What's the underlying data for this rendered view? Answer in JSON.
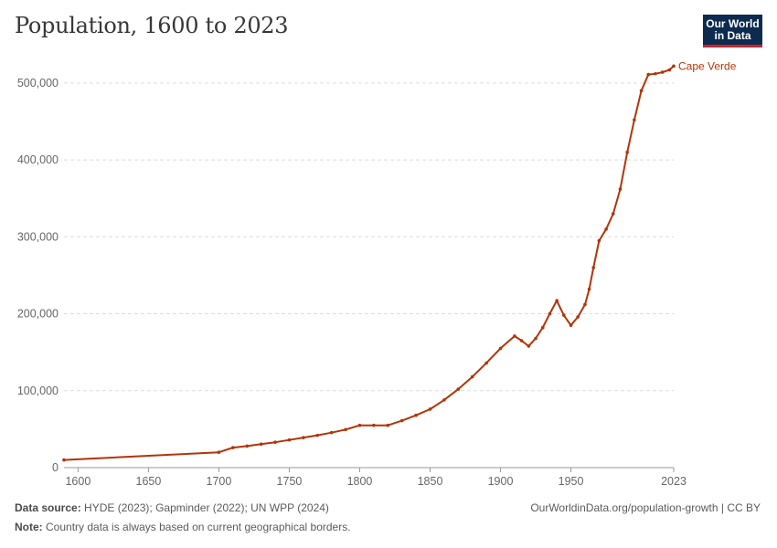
{
  "title": "Population, 1600 to 2023",
  "logo": {
    "line1": "Our World",
    "line2": "in Data"
  },
  "footer": {
    "source_label": "Data source:",
    "source_text": "HYDE (2023); Gapminder (2022); UN WPP (2024)",
    "url": "OurWorldinData.org/population-growth | CC BY",
    "note_label": "Note:",
    "note_text": "Country data is always based on current geographical borders."
  },
  "chart_data": {
    "type": "line",
    "title": "Population, 1600 to 2023",
    "xlabel": "",
    "ylabel": "",
    "xlim": [
      1590,
      2023
    ],
    "ylim": [
      0,
      520000
    ],
    "x_ticks": [
      1600,
      1650,
      1700,
      1750,
      1800,
      1850,
      1900,
      1950,
      2023
    ],
    "y_ticks": [
      0,
      100000,
      200000,
      300000,
      400000,
      500000
    ],
    "y_tick_labels": [
      "0",
      "100,000",
      "200,000",
      "300,000",
      "400,000",
      "500,000"
    ],
    "grid": "horizontal-dashed",
    "line_color": "#b13507",
    "series": [
      {
        "name": "Cape Verde",
        "x": [
          1590,
          1700,
          1710,
          1720,
          1730,
          1740,
          1750,
          1760,
          1770,
          1780,
          1790,
          1800,
          1810,
          1820,
          1830,
          1840,
          1850,
          1860,
          1870,
          1880,
          1890,
          1900,
          1910,
          1915,
          1920,
          1925,
          1930,
          1935,
          1940,
          1945,
          1950,
          1955,
          1960,
          1963,
          1966,
          1970,
          1975,
          1980,
          1985,
          1990,
          1995,
          2000,
          2005,
          2010,
          2015,
          2020,
          2023
        ],
        "values": [
          10000,
          20000,
          26000,
          28000,
          30500,
          33000,
          36000,
          39000,
          42000,
          45500,
          49500,
          55000,
          55000,
          55000,
          61000,
          68000,
          76000,
          88000,
          102000,
          118000,
          136000,
          155000,
          171000,
          165000,
          158000,
          168000,
          182000,
          200000,
          217000,
          198000,
          185000,
          196000,
          212000,
          232000,
          260000,
          295000,
          310000,
          330000,
          362000,
          410000,
          452000,
          490000,
          511000,
          512000,
          514000,
          517000,
          522000
        ]
      }
    ]
  }
}
